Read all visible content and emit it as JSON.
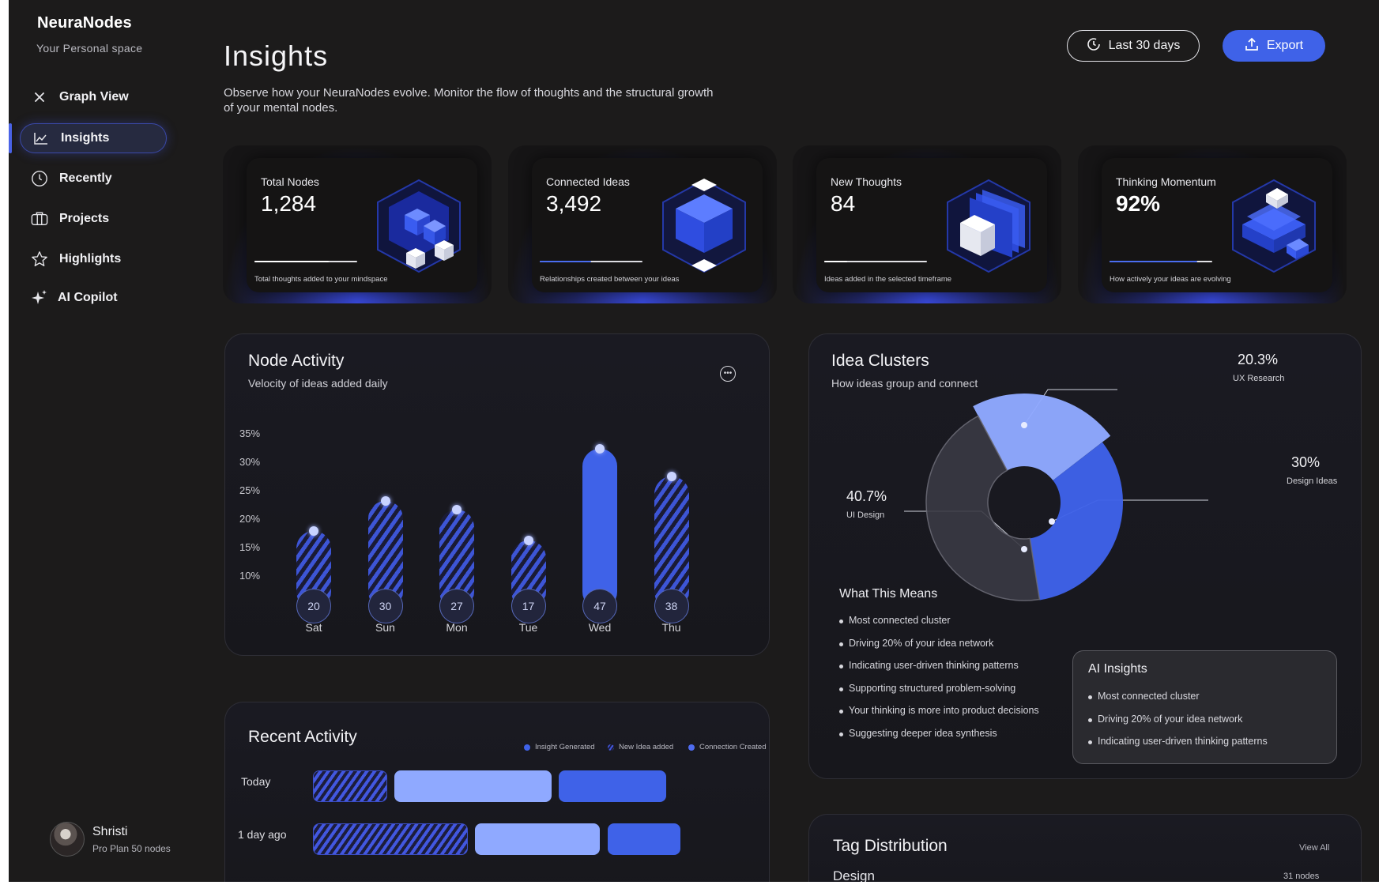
{
  "sidebar": {
    "brand": "NeuraNodes",
    "subtitle": "Your Personal space",
    "items": [
      {
        "label": "Graph View",
        "icon": "close-icon"
      },
      {
        "label": "Insights",
        "icon": "line-chart-icon"
      },
      {
        "label": "Recently",
        "icon": "clock-icon"
      },
      {
        "label": "Projects",
        "icon": "briefcase-icon"
      },
      {
        "label": "Highlights",
        "icon": "star-icon"
      },
      {
        "label": "AI Copilot",
        "icon": "sparkle-icon"
      }
    ],
    "user": {
      "name": "Shristi",
      "plan": "Pro Plan 50 nodes"
    }
  },
  "header": {
    "title": "Insights",
    "description": "Observe how your NeuraNodes evolve. Monitor the flow of thoughts and the structural growth of your mental nodes.",
    "range_label": "Last 30 days",
    "export_label": "Export"
  },
  "stats": [
    {
      "label": "Total Nodes",
      "value": "1,284",
      "footnote": "Total thoughts added to your mindspace",
      "progress": 0.72
    },
    {
      "label": "Connected Ideas",
      "value": "3,492",
      "footnote": "Relationships created between your ideas",
      "progress": 0.5
    },
    {
      "label": "New Thoughts",
      "value": "84",
      "footnote": "Ideas added in the selected timeframe",
      "progress": 0.22
    },
    {
      "label": "Thinking Momentum",
      "value": "92%",
      "footnote": "How actively your ideas are evolving",
      "progress": 0.85
    }
  ],
  "node_activity": {
    "title": "Node Activity",
    "subtitle": "Velocity of ideas added daily",
    "chart_data": {
      "type": "bar",
      "categories": [
        "Sat",
        "Sun",
        "Mon",
        "Tue",
        "Wed",
        "Thu"
      ],
      "values": [
        20,
        30,
        27,
        17,
        47,
        38
      ],
      "y_ticks": [
        "35%",
        "30%",
        "25%",
        "20%",
        "15%",
        "10%"
      ],
      "highlight": "Wed",
      "accent": "#3f62e8"
    }
  },
  "idea_clusters": {
    "title": "Idea Clusters",
    "subtitle": "How ideas group and connect",
    "chart_data": {
      "type": "pie",
      "slices": [
        {
          "label": "UX Research",
          "pct_label": "20.3%",
          "value": 20.3,
          "color": "#8fa9ff"
        },
        {
          "label": "Design Ideas",
          "pct_label": "30%",
          "value": 30,
          "color": "#3f62e8"
        },
        {
          "label": "UI Design",
          "pct_label": "40.7%",
          "value": 40.7,
          "color": "#3a3a44"
        }
      ]
    },
    "means_title": "What This Means",
    "means": [
      "Most connected cluster",
      "Driving 20% of your idea network",
      "Indicating user-driven thinking patterns",
      "Supporting structured problem-solving",
      "Your thinking is more into product decisions",
      "Suggesting deeper idea synthesis"
    ],
    "ai_title": "AI Insights",
    "ai_items": [
      "Most connected cluster",
      "Driving 20% of your idea network",
      "Indicating user-driven thinking patterns"
    ]
  },
  "recent_activity": {
    "title": "Recent Activity",
    "legend": [
      "Insight Generated",
      "New Idea added",
      "Connection Created"
    ],
    "rows": [
      {
        "label": "Today"
      },
      {
        "label": "1 day ago"
      }
    ]
  },
  "tag_distribution": {
    "title": "Tag Distribution",
    "view_all": "View All",
    "first_tag": "Design",
    "first_count": "31 nodes"
  }
}
